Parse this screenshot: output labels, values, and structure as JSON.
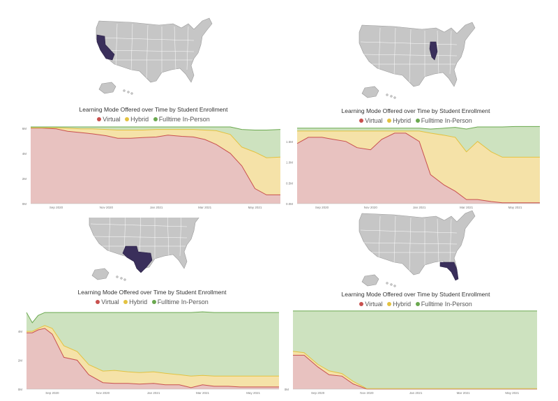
{
  "colors": {
    "virtual_fill": "#e8c2c0",
    "virtual_line": "#c8504e",
    "hybrid_fill": "#f5e2a8",
    "hybrid_line": "#e3c240",
    "inperson_fill": "#cde2bf",
    "inperson_line": "#6aa84f",
    "map_gray": "#c6c6c6",
    "map_stroke": "#9a9a9a",
    "highlight": "#3a2f5b"
  },
  "panels": [
    {
      "state": "California",
      "title": "Learning Mode Offered over Time by Student Enrollment",
      "legend": [
        {
          "label": "Virtual",
          "icon": "virtual-dot"
        },
        {
          "label": "Hybrid",
          "icon": "hybrid-dot"
        },
        {
          "label": "Fulltime In-Person",
          "icon": "inperson-dot"
        }
      ]
    },
    {
      "state": "Illinois",
      "title": "Learning Mode Offered over Time by Student Enrollment",
      "legend": [
        {
          "label": "Virtual",
          "icon": "virtual-dot"
        },
        {
          "label": "Hybrid",
          "icon": "hybrid-dot"
        },
        {
          "label": "Fulltime In-Person",
          "icon": "inperson-dot"
        }
      ]
    },
    {
      "state": "Texas",
      "title": "Learning Mode Offered over Time by Student Enrollment",
      "legend": [
        {
          "label": "Virtual",
          "icon": "virtual-dot"
        },
        {
          "label": "Hybrid",
          "icon": "hybrid-dot"
        },
        {
          "label": "Fulltime In-Person",
          "icon": "inperson-dot"
        }
      ]
    },
    {
      "state": "Florida",
      "title": "Learning Mode Offered over Time by Student Enrollment",
      "legend": [
        {
          "label": "Virtual",
          "icon": "virtual-dot"
        },
        {
          "label": "Hybrid",
          "icon": "hybrid-dot"
        },
        {
          "label": "Fulltime In-Person",
          "icon": "inperson-dot"
        }
      ]
    }
  ],
  "chart_data": [
    {
      "type": "area",
      "title": "Learning Mode Offered over Time by Student Enrollment",
      "x_ticks": [
        "Sep 2020",
        "Nov 2020",
        "Jan 2021",
        "Mar 2021",
        "May 2021"
      ],
      "y_ticks": [
        "0M",
        "2M",
        "4M",
        "6M"
      ],
      "ylim": [
        0,
        6.1
      ],
      "x": [
        "2020-08-01",
        "2020-08-15",
        "2020-09-01",
        "2020-09-15",
        "2020-10-01",
        "2020-10-15",
        "2020-11-01",
        "2020-11-15",
        "2020-12-01",
        "2020-12-15",
        "2021-01-01",
        "2021-01-15",
        "2021-02-01",
        "2021-02-15",
        "2021-03-01",
        "2021-03-15",
        "2021-04-01",
        "2021-04-15",
        "2021-05-01",
        "2021-05-15",
        "2021-06-01"
      ],
      "series": [
        {
          "name": "Virtual",
          "values": [
            6.0,
            6.0,
            5.95,
            5.75,
            5.65,
            5.55,
            5.4,
            5.2,
            5.2,
            5.25,
            5.3,
            5.45,
            5.35,
            5.3,
            5.1,
            4.7,
            4.0,
            3.0,
            1.2,
            0.7,
            0.7
          ]
        },
        {
          "name": "Hybrid",
          "values": [
            0.03,
            0.03,
            0.08,
            0.25,
            0.3,
            0.4,
            0.5,
            0.65,
            0.65,
            0.6,
            0.6,
            0.45,
            0.55,
            0.6,
            0.75,
            1.1,
            1.5,
            1.5,
            2.9,
            2.95,
            3.0
          ]
        },
        {
          "name": "Fulltime In-Person",
          "values": [
            0.07,
            0.07,
            0.07,
            0.1,
            0.15,
            0.15,
            0.2,
            0.25,
            0.25,
            0.25,
            0.2,
            0.2,
            0.2,
            0.2,
            0.25,
            0.3,
            0.6,
            1.4,
            1.75,
            2.2,
            2.2
          ]
        }
      ]
    },
    {
      "type": "area",
      "title": "Learning Mode Offered over Time by Student Enrollment",
      "x_ticks": [
        "Sep 2020",
        "Nov 2020",
        "Jan 2021",
        "Mar 2021",
        "May 2021"
      ],
      "y_ticks": [
        "0.0M",
        "0.5M",
        "1.0M",
        "1.5M"
      ],
      "ylim": [
        0,
        1.85
      ],
      "x": [
        "2020-08-01",
        "2020-08-15",
        "2020-09-01",
        "2020-09-15",
        "2020-10-01",
        "2020-10-15",
        "2020-11-01",
        "2020-11-15",
        "2020-12-01",
        "2020-12-15",
        "2021-01-01",
        "2021-01-15",
        "2021-02-01",
        "2021-02-15",
        "2021-03-01",
        "2021-03-15",
        "2021-04-01",
        "2021-04-15",
        "2021-05-01",
        "2021-05-15",
        "2021-06-01"
      ],
      "series": [
        {
          "name": "Virtual",
          "values": [
            1.45,
            1.6,
            1.6,
            1.55,
            1.5,
            1.35,
            1.3,
            1.55,
            1.7,
            1.7,
            1.5,
            0.7,
            0.45,
            0.3,
            0.1,
            0.1,
            0.05,
            0.02,
            0.02,
            0.02,
            0.02
          ]
        },
        {
          "name": "Hybrid",
          "values": [
            0.3,
            0.15,
            0.15,
            0.2,
            0.25,
            0.4,
            0.45,
            0.2,
            0.05,
            0.05,
            0.25,
            1.0,
            1.2,
            1.3,
            1.15,
            1.4,
            1.2,
            1.1,
            1.1,
            1.1,
            1.1
          ]
        },
        {
          "name": "Fulltime In-Person",
          "values": [
            0.07,
            0.07,
            0.07,
            0.07,
            0.07,
            0.07,
            0.07,
            0.07,
            0.07,
            0.07,
            0.07,
            0.1,
            0.17,
            0.24,
            0.55,
            0.35,
            0.6,
            0.73,
            0.74,
            0.74,
            0.74
          ]
        }
      ]
    },
    {
      "type": "area",
      "title": "Learning Mode Offered over Time by Student Enrollment",
      "x_ticks": [
        "Sep 2020",
        "Nov 2020",
        "Jan 2021",
        "Mar 2021",
        "May 2021"
      ],
      "y_ticks": [
        "0M",
        "2M",
        "4M"
      ],
      "ylim": [
        0,
        5.5
      ],
      "x": [
        "2020-08-01",
        "2020-08-08",
        "2020-08-15",
        "2020-08-23",
        "2020-09-01",
        "2020-09-15",
        "2020-10-01",
        "2020-10-15",
        "2020-11-01",
        "2020-11-15",
        "2020-12-01",
        "2020-12-15",
        "2021-01-01",
        "2021-01-15",
        "2021-02-01",
        "2021-02-15",
        "2021-03-01",
        "2021-03-15",
        "2021-04-01",
        "2021-04-15",
        "2021-05-01",
        "2021-05-15",
        "2021-06-01"
      ],
      "series": [
        {
          "name": "Virtual",
          "values": [
            3.9,
            3.9,
            4.1,
            4.2,
            3.8,
            2.2,
            2.0,
            1.0,
            0.45,
            0.4,
            0.4,
            0.35,
            0.4,
            0.3,
            0.3,
            0.1,
            0.3,
            0.2,
            0.2,
            0.15,
            0.15,
            0.15,
            0.15
          ]
        },
        {
          "name": "Hybrid",
          "values": [
            0.1,
            0.1,
            0.1,
            0.2,
            0.4,
            0.8,
            0.6,
            0.7,
            0.8,
            0.9,
            0.8,
            0.8,
            0.8,
            0.8,
            0.7,
            0.8,
            0.65,
            0.7,
            0.7,
            0.75,
            0.75,
            0.75,
            0.75
          ]
        },
        {
          "name": "Fulltime In-Person",
          "values": [
            1.3,
            0.6,
            0.9,
            0.9,
            1.1,
            2.3,
            2.7,
            3.6,
            4.05,
            4.0,
            4.1,
            4.15,
            4.1,
            4.2,
            4.3,
            4.4,
            4.4,
            4.4,
            4.4,
            4.4,
            4.4,
            4.4,
            4.4
          ]
        }
      ]
    },
    {
      "type": "area",
      "title": "Learning Mode Offered over Time by Student Enrollment",
      "x_ticks": [
        "Sep 2020",
        "Nov 2020",
        "Jan 2021",
        "Mar 2021",
        "May 2021"
      ],
      "y_ticks": [
        "0M",
        "",
        "",
        ""
      ],
      "ylim": [
        0,
        3.05
      ],
      "x": [
        "2020-08-01",
        "2020-08-15",
        "2020-09-01",
        "2020-09-15",
        "2020-10-01",
        "2020-10-15",
        "2020-11-01",
        "2020-11-15",
        "2020-12-01",
        "2021-01-01",
        "2021-02-01",
        "2021-03-01",
        "2021-04-01",
        "2021-05-01",
        "2021-06-01"
      ],
      "series": [
        {
          "name": "Virtual",
          "values": [
            1.3,
            1.3,
            0.85,
            0.55,
            0.5,
            0.2,
            0.0,
            0.0,
            0.0,
            0.0,
            0.0,
            0.0,
            0.0,
            0.0,
            0.0
          ]
        },
        {
          "name": "Hybrid",
          "values": [
            0.15,
            0.1,
            0.1,
            0.15,
            0.1,
            0.1,
            0.02,
            0.02,
            0.02,
            0.02,
            0.02,
            0.02,
            0.02,
            0.02,
            0.02
          ]
        },
        {
          "name": "Fulltime In-Person",
          "values": [
            1.55,
            1.6,
            2.05,
            2.3,
            2.4,
            2.7,
            2.98,
            2.98,
            2.98,
            2.98,
            2.98,
            2.98,
            2.98,
            2.98,
            2.98
          ]
        }
      ]
    }
  ]
}
